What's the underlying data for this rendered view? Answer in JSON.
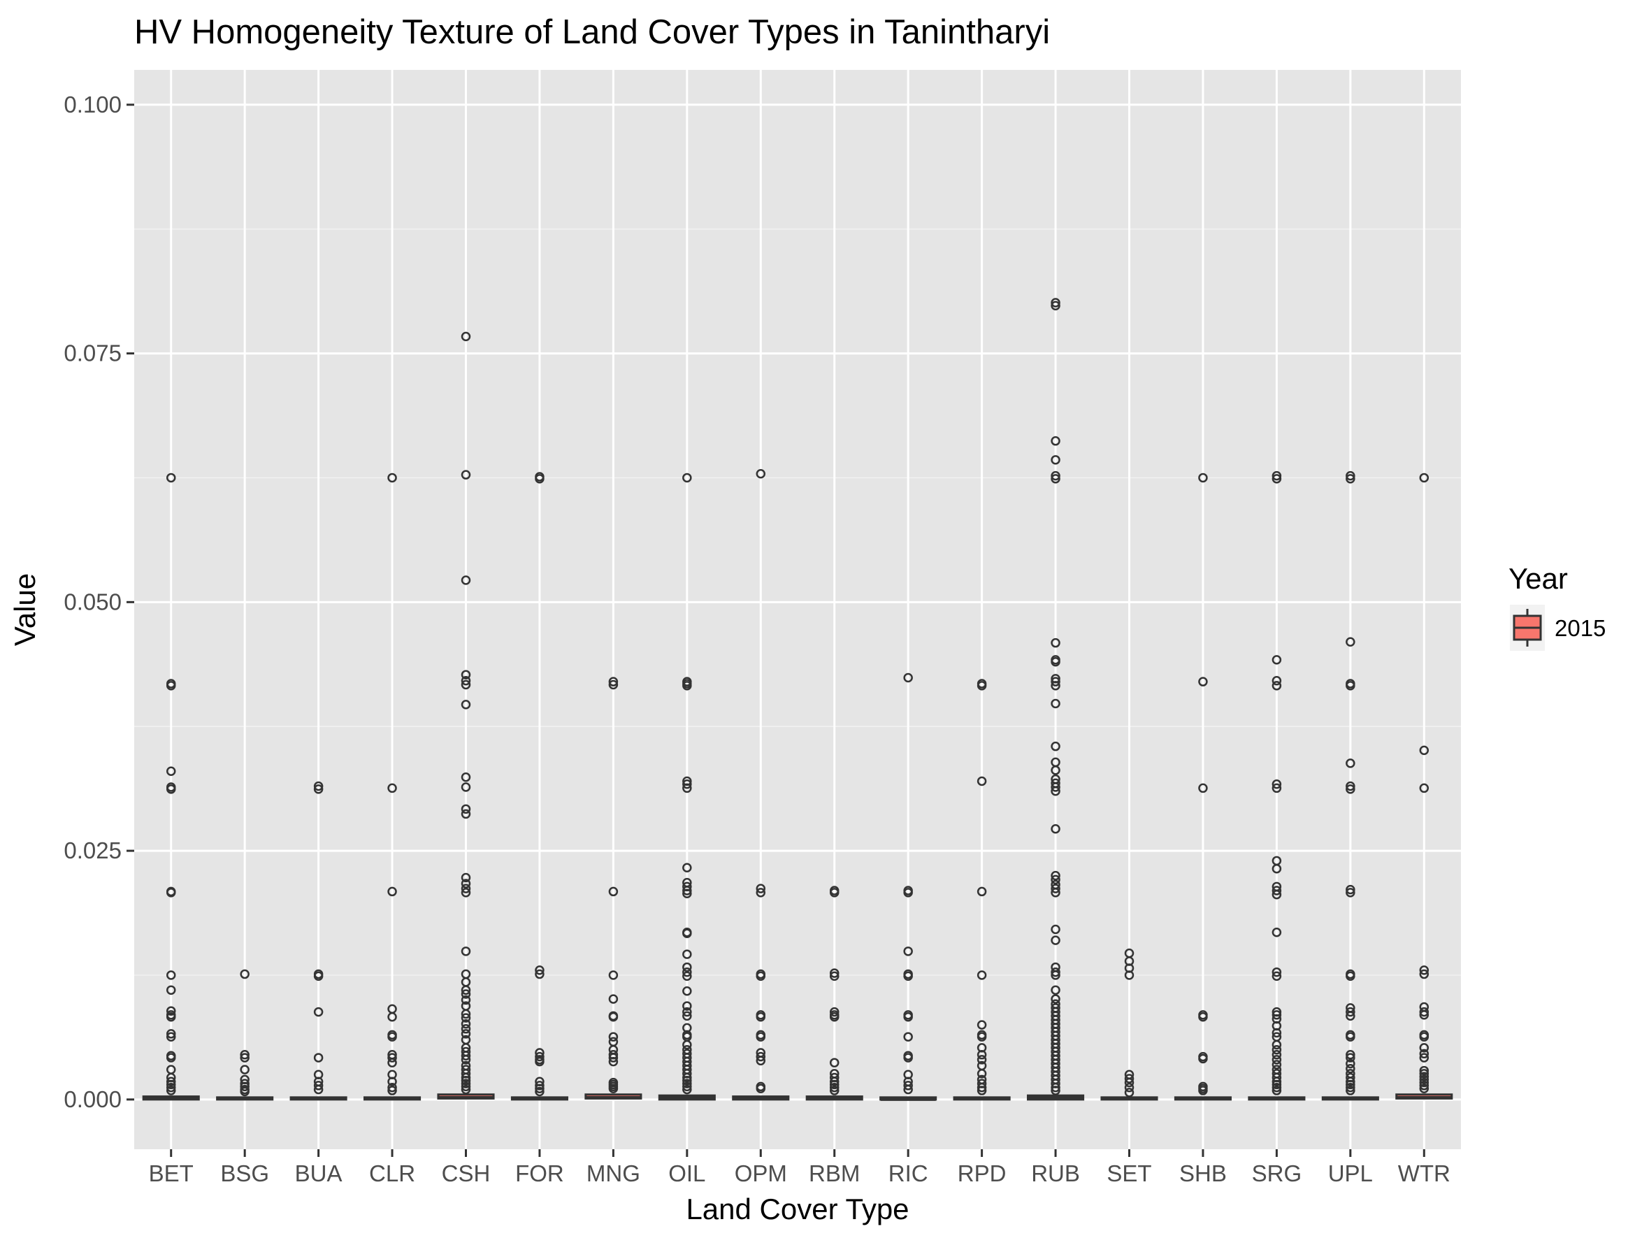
{
  "chart_data": {
    "type": "box",
    "title": "HV Homogeneity Texture of Land Cover Types in Tanintharyi",
    "xlabel": "Land Cover Type",
    "ylabel": "Value",
    "ylim": [
      -0.005,
      0.1035
    ],
    "yticks": [
      "0.000",
      "0.025",
      "0.050",
      "0.075",
      "0.100"
    ],
    "grid": true,
    "legend": {
      "title": "Year",
      "position": "right",
      "entries": [
        {
          "label": "2015",
          "color": "#f8766d"
        }
      ]
    },
    "fill_color": "#f8766d",
    "panel_color": "#e5e5e5",
    "categories": [
      "BET",
      "BSG",
      "BUA",
      "CLR",
      "CSH",
      "FOR",
      "MNG",
      "OIL",
      "OPM",
      "RBM",
      "RIC",
      "RPD",
      "RUB",
      "SET",
      "SHB",
      "SRG",
      "UPL",
      "WTR"
    ],
    "series": [
      {
        "name": "2015",
        "boxes": [
          {
            "category": "BET",
            "q1": 0.0,
            "median": 0.0001,
            "q3": 0.0003,
            "outliers": [
              0.0625,
              0.0418,
              0.0416,
              0.033,
              0.0314,
              0.0312,
              0.0209,
              0.0208,
              0.0125,
              0.011,
              0.0089,
              0.0085,
              0.0083,
              0.0066,
              0.0063,
              0.0044,
              0.0042,
              0.003,
              0.0022,
              0.0018,
              0.0015,
              0.0012,
              0.0009
            ]
          },
          {
            "category": "BSG",
            "q1": 0.0,
            "median": 0.0001,
            "q3": 0.0002,
            "outliers": [
              0.0126,
              0.0045,
              0.0042,
              0.003,
              0.002,
              0.0016,
              0.0013,
              0.001,
              0.0008
            ]
          },
          {
            "category": "BUA",
            "q1": 0.0,
            "median": 0.0001,
            "q3": 0.0002,
            "outliers": [
              0.0315,
              0.0312,
              0.0126,
              0.0124,
              0.0088,
              0.0042,
              0.0025,
              0.0018,
              0.0014,
              0.001
            ]
          },
          {
            "category": "CLR",
            "q1": 0.0,
            "median": 0.0001,
            "q3": 0.0002,
            "outliers": [
              0.0625,
              0.0313,
              0.0209,
              0.0091,
              0.0083,
              0.0065,
              0.0063,
              0.0045,
              0.0042,
              0.0037,
              0.0025,
              0.0018,
              0.0012,
              0.0009
            ]
          },
          {
            "category": "CSH",
            "q1": 0.0001,
            "median": 0.0002,
            "q3": 0.0005,
            "outliers": [
              0.0767,
              0.0628,
              0.0522,
              0.0427,
              0.0421,
              0.0417,
              0.0397,
              0.0324,
              0.0314,
              0.0292,
              0.0287,
              0.0223,
              0.0217,
              0.0212,
              0.0208,
              0.0149,
              0.0126,
              0.0118,
              0.011,
              0.0106,
              0.01,
              0.0094,
              0.0086,
              0.0082,
              0.0076,
              0.0071,
              0.0066,
              0.006,
              0.0052,
              0.0048,
              0.0044,
              0.004,
              0.0034,
              0.003,
              0.0026,
              0.0022,
              0.0019,
              0.0016,
              0.0013,
              0.001
            ]
          },
          {
            "category": "FOR",
            "q1": 0.0,
            "median": 0.0001,
            "q3": 0.0002,
            "outliers": [
              0.0626,
              0.0624,
              0.013,
              0.0126,
              0.0047,
              0.0043,
              0.004,
              0.0038,
              0.0018,
              0.0014,
              0.0011,
              0.0008
            ]
          },
          {
            "category": "MNG",
            "q1": 0.0001,
            "median": 0.0002,
            "q3": 0.0005,
            "outliers": [
              0.042,
              0.0417,
              0.0209,
              0.0125,
              0.0101,
              0.0084,
              0.0083,
              0.0063,
              0.0058,
              0.005,
              0.0045,
              0.0042,
              0.0038,
              0.0017,
              0.0015,
              0.0013,
              0.0011
            ]
          },
          {
            "category": "OIL",
            "q1": 0.0,
            "median": 0.0002,
            "q3": 0.0004,
            "outliers": [
              0.0625,
              0.042,
              0.0418,
              0.0416,
              0.032,
              0.0317,
              0.0313,
              0.0233,
              0.0218,
              0.0214,
              0.021,
              0.0207,
              0.0168,
              0.0167,
              0.0146,
              0.0133,
              0.0128,
              0.0124,
              0.0109,
              0.0094,
              0.0088,
              0.0084,
              0.0072,
              0.0065,
              0.0063,
              0.0055,
              0.005,
              0.0046,
              0.0042,
              0.0038,
              0.0034,
              0.003,
              0.0026,
              0.0022,
              0.0019,
              0.0016,
              0.0013,
              0.001
            ]
          },
          {
            "category": "OPM",
            "q1": 0.0,
            "median": 0.0001,
            "q3": 0.0003,
            "outliers": [
              0.0629,
              0.0212,
              0.0208,
              0.0126,
              0.0124,
              0.0085,
              0.0083,
              0.0065,
              0.0063,
              0.0047,
              0.0043,
              0.0039,
              0.0013,
              0.0011
            ]
          },
          {
            "category": "RBM",
            "q1": 0.0,
            "median": 0.0001,
            "q3": 0.0003,
            "outliers": [
              0.021,
              0.0208,
              0.0127,
              0.0124,
              0.0088,
              0.0085,
              0.0083,
              0.0037,
              0.0026,
              0.0022,
              0.0018,
              0.0015,
              0.0012,
              0.0009
            ]
          },
          {
            "category": "RIC",
            "q1": 0.0,
            "median": 0.0,
            "q3": 0.0002,
            "outliers": [
              0.0424,
              0.021,
              0.0208,
              0.0149,
              0.0126,
              0.0124,
              0.0085,
              0.0083,
              0.0063,
              0.0044,
              0.0042,
              0.0025,
              0.0018,
              0.0014,
              0.001
            ]
          },
          {
            "category": "RPD",
            "q1": 0.0,
            "median": 0.0001,
            "q3": 0.0002,
            "outliers": [
              0.0418,
              0.0416,
              0.032,
              0.0209,
              0.0125,
              0.0075,
              0.0065,
              0.0063,
              0.0052,
              0.0045,
              0.004,
              0.0034,
              0.0026,
              0.002,
              0.0016,
              0.0012,
              0.0009
            ]
          },
          {
            "category": "RUB",
            "q1": 0.0,
            "median": 0.0002,
            "q3": 0.0004,
            "outliers": [
              0.0801,
              0.0798,
              0.0662,
              0.0643,
              0.0627,
              0.0624,
              0.0459,
              0.0442,
              0.044,
              0.0423,
              0.042,
              0.0416,
              0.0398,
              0.0355,
              0.0339,
              0.0331,
              0.0322,
              0.0318,
              0.0314,
              0.031,
              0.0272,
              0.0225,
              0.0221,
              0.0216,
              0.0212,
              0.0208,
              0.0171,
              0.016,
              0.0133,
              0.0128,
              0.0125,
              0.011,
              0.0101,
              0.0096,
              0.0092,
              0.0088,
              0.0084,
              0.008,
              0.0076,
              0.0072,
              0.0068,
              0.0064,
              0.006,
              0.0056,
              0.0052,
              0.0048,
              0.0044,
              0.004,
              0.0036,
              0.0032,
              0.0028,
              0.0024,
              0.002,
              0.0016,
              0.0012,
              0.0009
            ]
          },
          {
            "category": "SET",
            "q1": 0.0,
            "median": 0.0001,
            "q3": 0.0002,
            "outliers": [
              0.0147,
              0.0139,
              0.0132,
              0.0125,
              0.0025,
              0.0021,
              0.0017,
              0.0012,
              0.0007
            ]
          },
          {
            "category": "SHB",
            "q1": 0.0,
            "median": 0.0001,
            "q3": 0.0002,
            "outliers": [
              0.0625,
              0.042,
              0.0313,
              0.0085,
              0.0083,
              0.0043,
              0.0041,
              0.0013,
              0.0011,
              0.0009
            ]
          },
          {
            "category": "SRG",
            "q1": 0.0,
            "median": 0.0001,
            "q3": 0.0002,
            "outliers": [
              0.0627,
              0.0624,
              0.0442,
              0.0421,
              0.0416,
              0.0317,
              0.0313,
              0.024,
              0.0232,
              0.0214,
              0.021,
              0.0206,
              0.0168,
              0.0128,
              0.0124,
              0.0088,
              0.0085,
              0.0081,
              0.0074,
              0.0067,
              0.0063,
              0.0055,
              0.005,
              0.0045,
              0.004,
              0.0035,
              0.003,
              0.0026,
              0.0022,
              0.0018,
              0.0015,
              0.0012,
              0.0009
            ]
          },
          {
            "category": "UPL",
            "q1": 0.0,
            "median": 0.0001,
            "q3": 0.0002,
            "outliers": [
              0.0627,
              0.0624,
              0.046,
              0.0418,
              0.0416,
              0.0338,
              0.0315,
              0.0312,
              0.0211,
              0.0208,
              0.0126,
              0.0124,
              0.0092,
              0.0088,
              0.0084,
              0.0065,
              0.0063,
              0.0045,
              0.0042,
              0.0036,
              0.0031,
              0.0026,
              0.0022,
              0.0018,
              0.0015,
              0.0012,
              0.0009
            ]
          },
          {
            "category": "WTR",
            "q1": 0.0001,
            "median": 0.0002,
            "q3": 0.0005,
            "outliers": [
              0.0625,
              0.0351,
              0.0313,
              0.013,
              0.0126,
              0.0093,
              0.0088,
              0.0085,
              0.0065,
              0.0063,
              0.0052,
              0.0046,
              0.0042,
              0.0029,
              0.0026,
              0.0023,
              0.002,
              0.0017,
              0.0014,
              0.0011
            ]
          }
        ]
      }
    ]
  }
}
